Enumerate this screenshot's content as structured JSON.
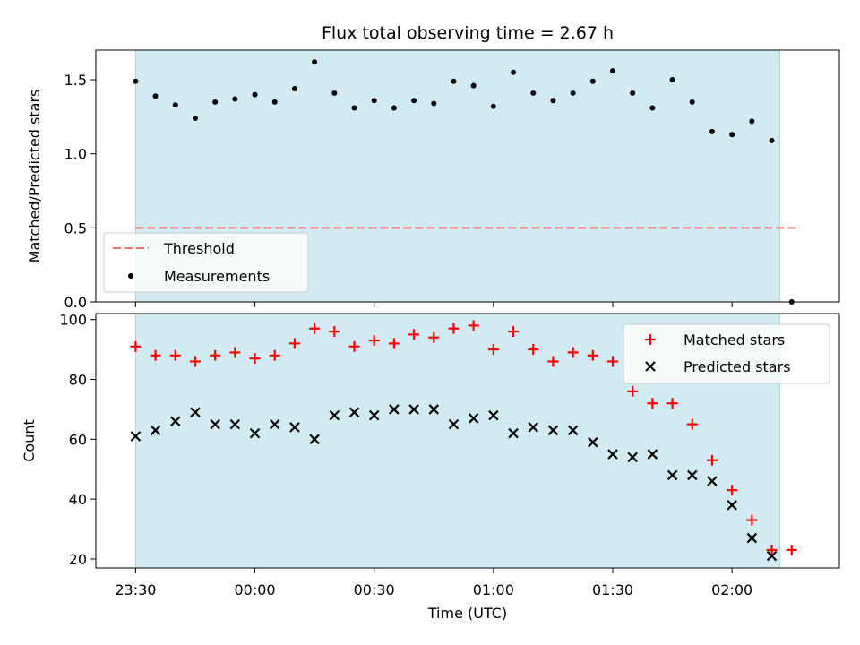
{
  "chart_data": [
    {
      "type": "scatter",
      "title": "Flux total observing time = 2.67 h",
      "xlabel": "",
      "ylabel": "Matched/Predicted stars",
      "ylim": [
        0,
        1.7
      ],
      "yticks": [
        0.0,
        0.5,
        1.0,
        1.5
      ],
      "ytick_labels": [
        "0.0",
        "0.5",
        "1.0",
        "1.5"
      ],
      "observing_window": [
        "23:30",
        "02:12"
      ],
      "x": [
        "23:30",
        "23:35",
        "23:40",
        "23:45",
        "23:50",
        "23:55",
        "00:00",
        "00:05",
        "00:10",
        "00:15",
        "00:20",
        "00:25",
        "00:30",
        "00:35",
        "00:40",
        "00:45",
        "00:50",
        "00:55",
        "01:00",
        "01:05",
        "01:10",
        "01:15",
        "01:20",
        "01:25",
        "01:30",
        "01:35",
        "01:40",
        "01:45",
        "01:50",
        "01:55",
        "02:00",
        "02:05",
        "02:10",
        "02:15"
      ],
      "series": [
        {
          "name": "Threshold",
          "style": "dashed-line",
          "color": "#f07070",
          "x": [
            "23:30",
            "02:17"
          ],
          "values": [
            0.5,
            0.5
          ]
        },
        {
          "name": "Measurements",
          "style": "dot",
          "color": "#000000",
          "values": [
            1.49,
            1.39,
            1.33,
            1.24,
            1.35,
            1.37,
            1.4,
            1.35,
            1.44,
            1.62,
            1.41,
            1.31,
            1.36,
            1.31,
            1.36,
            1.34,
            1.49,
            1.46,
            1.32,
            1.55,
            1.41,
            1.36,
            1.41,
            1.49,
            1.56,
            1.41,
            1.31,
            1.5,
            1.35,
            1.15,
            1.13,
            1.22,
            1.09,
            0.0
          ]
        }
      ],
      "legend": "lower-left",
      "shading_color": "#add8e6"
    },
    {
      "type": "scatter",
      "title": "",
      "xlabel": "Time (UTC)",
      "ylabel": "Count",
      "ylim": [
        17,
        102
      ],
      "yticks": [
        20,
        40,
        60,
        80,
        100
      ],
      "ytick_labels": [
        "20",
        "40",
        "60",
        "80",
        "100"
      ],
      "xticks": [
        "23:30",
        "00:00",
        "00:30",
        "01:00",
        "01:30",
        "02:00"
      ],
      "xlim": [
        "23:20",
        "02:27"
      ],
      "x": [
        "23:30",
        "23:35",
        "23:40",
        "23:45",
        "23:50",
        "23:55",
        "00:00",
        "00:05",
        "00:10",
        "00:15",
        "00:20",
        "00:25",
        "00:30",
        "00:35",
        "00:40",
        "00:45",
        "00:50",
        "00:55",
        "01:00",
        "01:05",
        "01:10",
        "01:15",
        "01:20",
        "01:25",
        "01:30",
        "01:35",
        "01:40",
        "01:45",
        "01:50",
        "01:55",
        "02:00",
        "02:05",
        "02:10",
        "02:15"
      ],
      "series": [
        {
          "name": "Matched stars",
          "marker": "plus",
          "color": "#ff0000",
          "values": [
            91,
            88,
            88,
            86,
            88,
            89,
            87,
            88,
            92,
            97,
            96,
            91,
            93,
            92,
            95,
            94,
            97,
            98,
            90,
            96,
            90,
            86,
            89,
            88,
            86,
            76,
            72,
            72,
            65,
            53,
            43,
            33,
            23,
            23
          ]
        },
        {
          "name": "Predicted stars",
          "marker": "x",
          "color": "#000000",
          "values": [
            61,
            63,
            66,
            69,
            65,
            65,
            62,
            65,
            64,
            60,
            68,
            69,
            68,
            70,
            70,
            70,
            65,
            67,
            68,
            62,
            64,
            63,
            63,
            59,
            55,
            54,
            55,
            48,
            48,
            46,
            38,
            27,
            21,
            null
          ]
        }
      ],
      "legend": "upper-right",
      "shading_color": "#add8e6"
    }
  ]
}
